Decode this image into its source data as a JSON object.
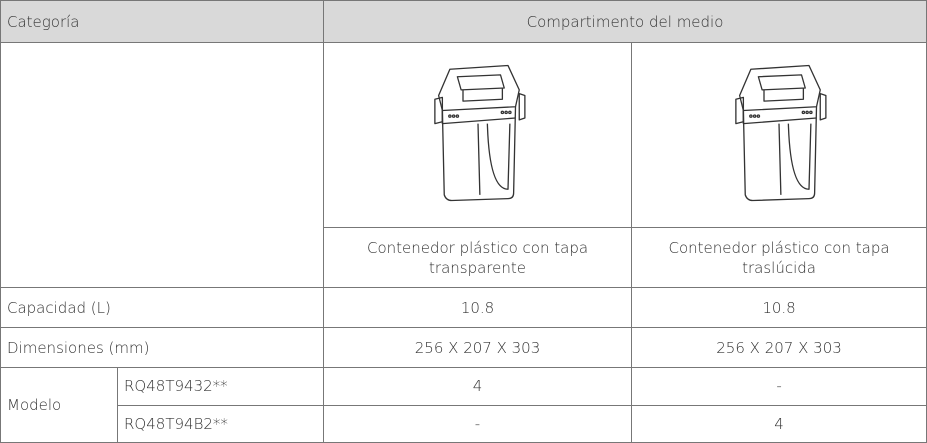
{
  "header": {
    "category": "Categoría",
    "compartment": "Compartimento del medio"
  },
  "products": [
    {
      "label": "Contenedor plástico con tapa transparente"
    },
    {
      "label": "Contenedor plástico con tapa traslúcida"
    }
  ],
  "rows": [
    {
      "label": "Capacidad (L)",
      "values": [
        "10.8",
        "10.8"
      ]
    },
    {
      "label": "Dimensiones (mm)",
      "values": [
        "256 X 207 X 303",
        "256 X 207 X 303"
      ]
    }
  ],
  "model": {
    "label": "Modelo",
    "items": [
      {
        "name": "RQ48T9432**",
        "values": [
          "4",
          "-"
        ]
      },
      {
        "name": "RQ48T94B2**",
        "values": [
          "-",
          "4"
        ]
      }
    ]
  }
}
